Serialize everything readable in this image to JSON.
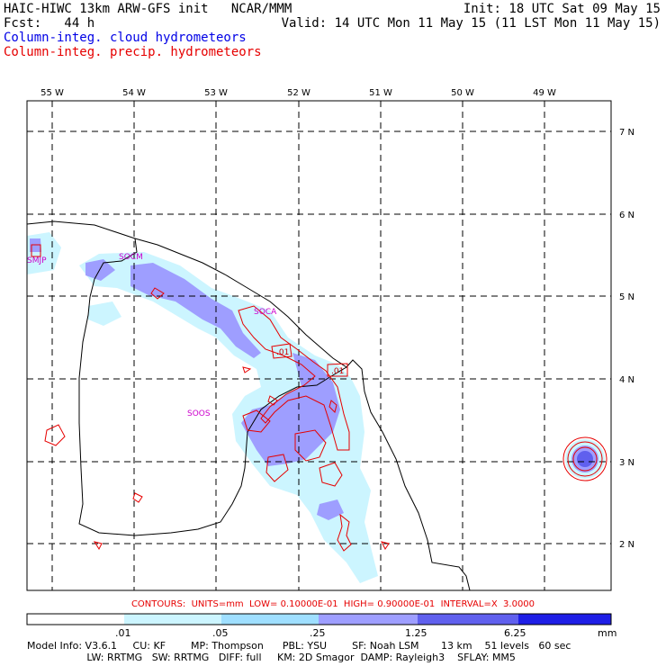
{
  "header": {
    "line1_left": "HAIC-HIWC 13km ARW-GFS init   NCAR/MMM",
    "line1_right": "Init: 18 UTC Sat 09 May 15",
    "line2_left": "Fcst:   44 h",
    "line2_right": "Valid: 14 UTC Mon 11 May 15 (11 LST Mon 11 May 15)",
    "line3": "Column-integ. cloud hydrometeors",
    "line4": "Column-integ. precip. hydrometeors"
  },
  "map": {
    "lon_labels": [
      "55 W",
      "54 W",
      "53 W",
      "52 W",
      "51 W",
      "50 W",
      "49 W"
    ],
    "lat_labels": [
      "7 N",
      "6 N",
      "5 N",
      "4 N",
      "3 N",
      "2 N"
    ],
    "stations": [
      "SMJP",
      "SOCM",
      "SOCA",
      "SOOS"
    ],
    "contour_labels": [
      ".01",
      ".01"
    ],
    "colors": {
      "cloud_light": "#ccf5ff",
      "cloud_medium": "#9e9eff",
      "cloud_dark": "#6060ee",
      "cloud_max": "#1e1ee6",
      "precip_contour": "#e60000",
      "coast": "#000000"
    }
  },
  "contours_text": "CONTOURS:  UNITS=mm  LOW= 0.10000E-01  HIGH= 0.90000E-01  INTERVAL=X  3.0000",
  "legend": {
    "labels": [
      ".01",
      ".05",
      ".25",
      "1.25",
      "6.25",
      "mm"
    ],
    "colors": [
      "#ffffff",
      "#ccf5ff",
      "#9fdfff",
      "#9e9eff",
      "#6060ee",
      "#1e1ee6"
    ]
  },
  "model_info": {
    "line1": "Model Info: V3.6.1     CU: KF        MP: Thompson      PBL: YSU        SF: Noah LSM       13 km    51 levels   60 sec",
    "line2": "                   LW: RRTMG   SW: RRTMG   DIFF: full     KM: 2D Smagor  DAMP: Rayleigh3    SFLAY: MM5"
  }
}
